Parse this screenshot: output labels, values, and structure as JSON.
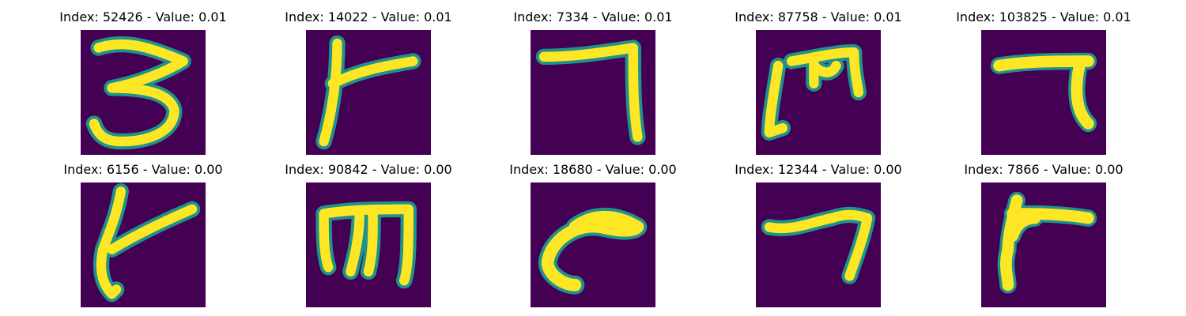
{
  "colors": {
    "background": "#440154",
    "stroke": "#fde725",
    "stroke_edge": "#21918c"
  },
  "panels": [
    {
      "title": "Index: 52426 - Value: 0.01",
      "glyph": "three"
    },
    {
      "title": "Index: 14022 - Value: 0.01",
      "glyph": "cross-right"
    },
    {
      "title": "Index: 7334 - Value: 0.01",
      "glyph": "seven-hook"
    },
    {
      "title": "Index: 87758 - Value: 0.01",
      "glyph": "m-bracket"
    },
    {
      "title": "Index: 103825 - Value: 0.01",
      "glyph": "seven-thick"
    },
    {
      "title": "Index: 6156 - Value: 0.00",
      "glyph": "cross-right-slant"
    },
    {
      "title": "Index: 90842 - Value: 0.00",
      "glyph": "m-shape"
    },
    {
      "title": "Index: 18680 - Value: 0.00",
      "glyph": "curve-c"
    },
    {
      "title": "Index: 12344 - Value: 0.00",
      "glyph": "seven-slim"
    },
    {
      "title": "Index: 7866 - Value: 0.00",
      "glyph": "gamma"
    }
  ]
}
